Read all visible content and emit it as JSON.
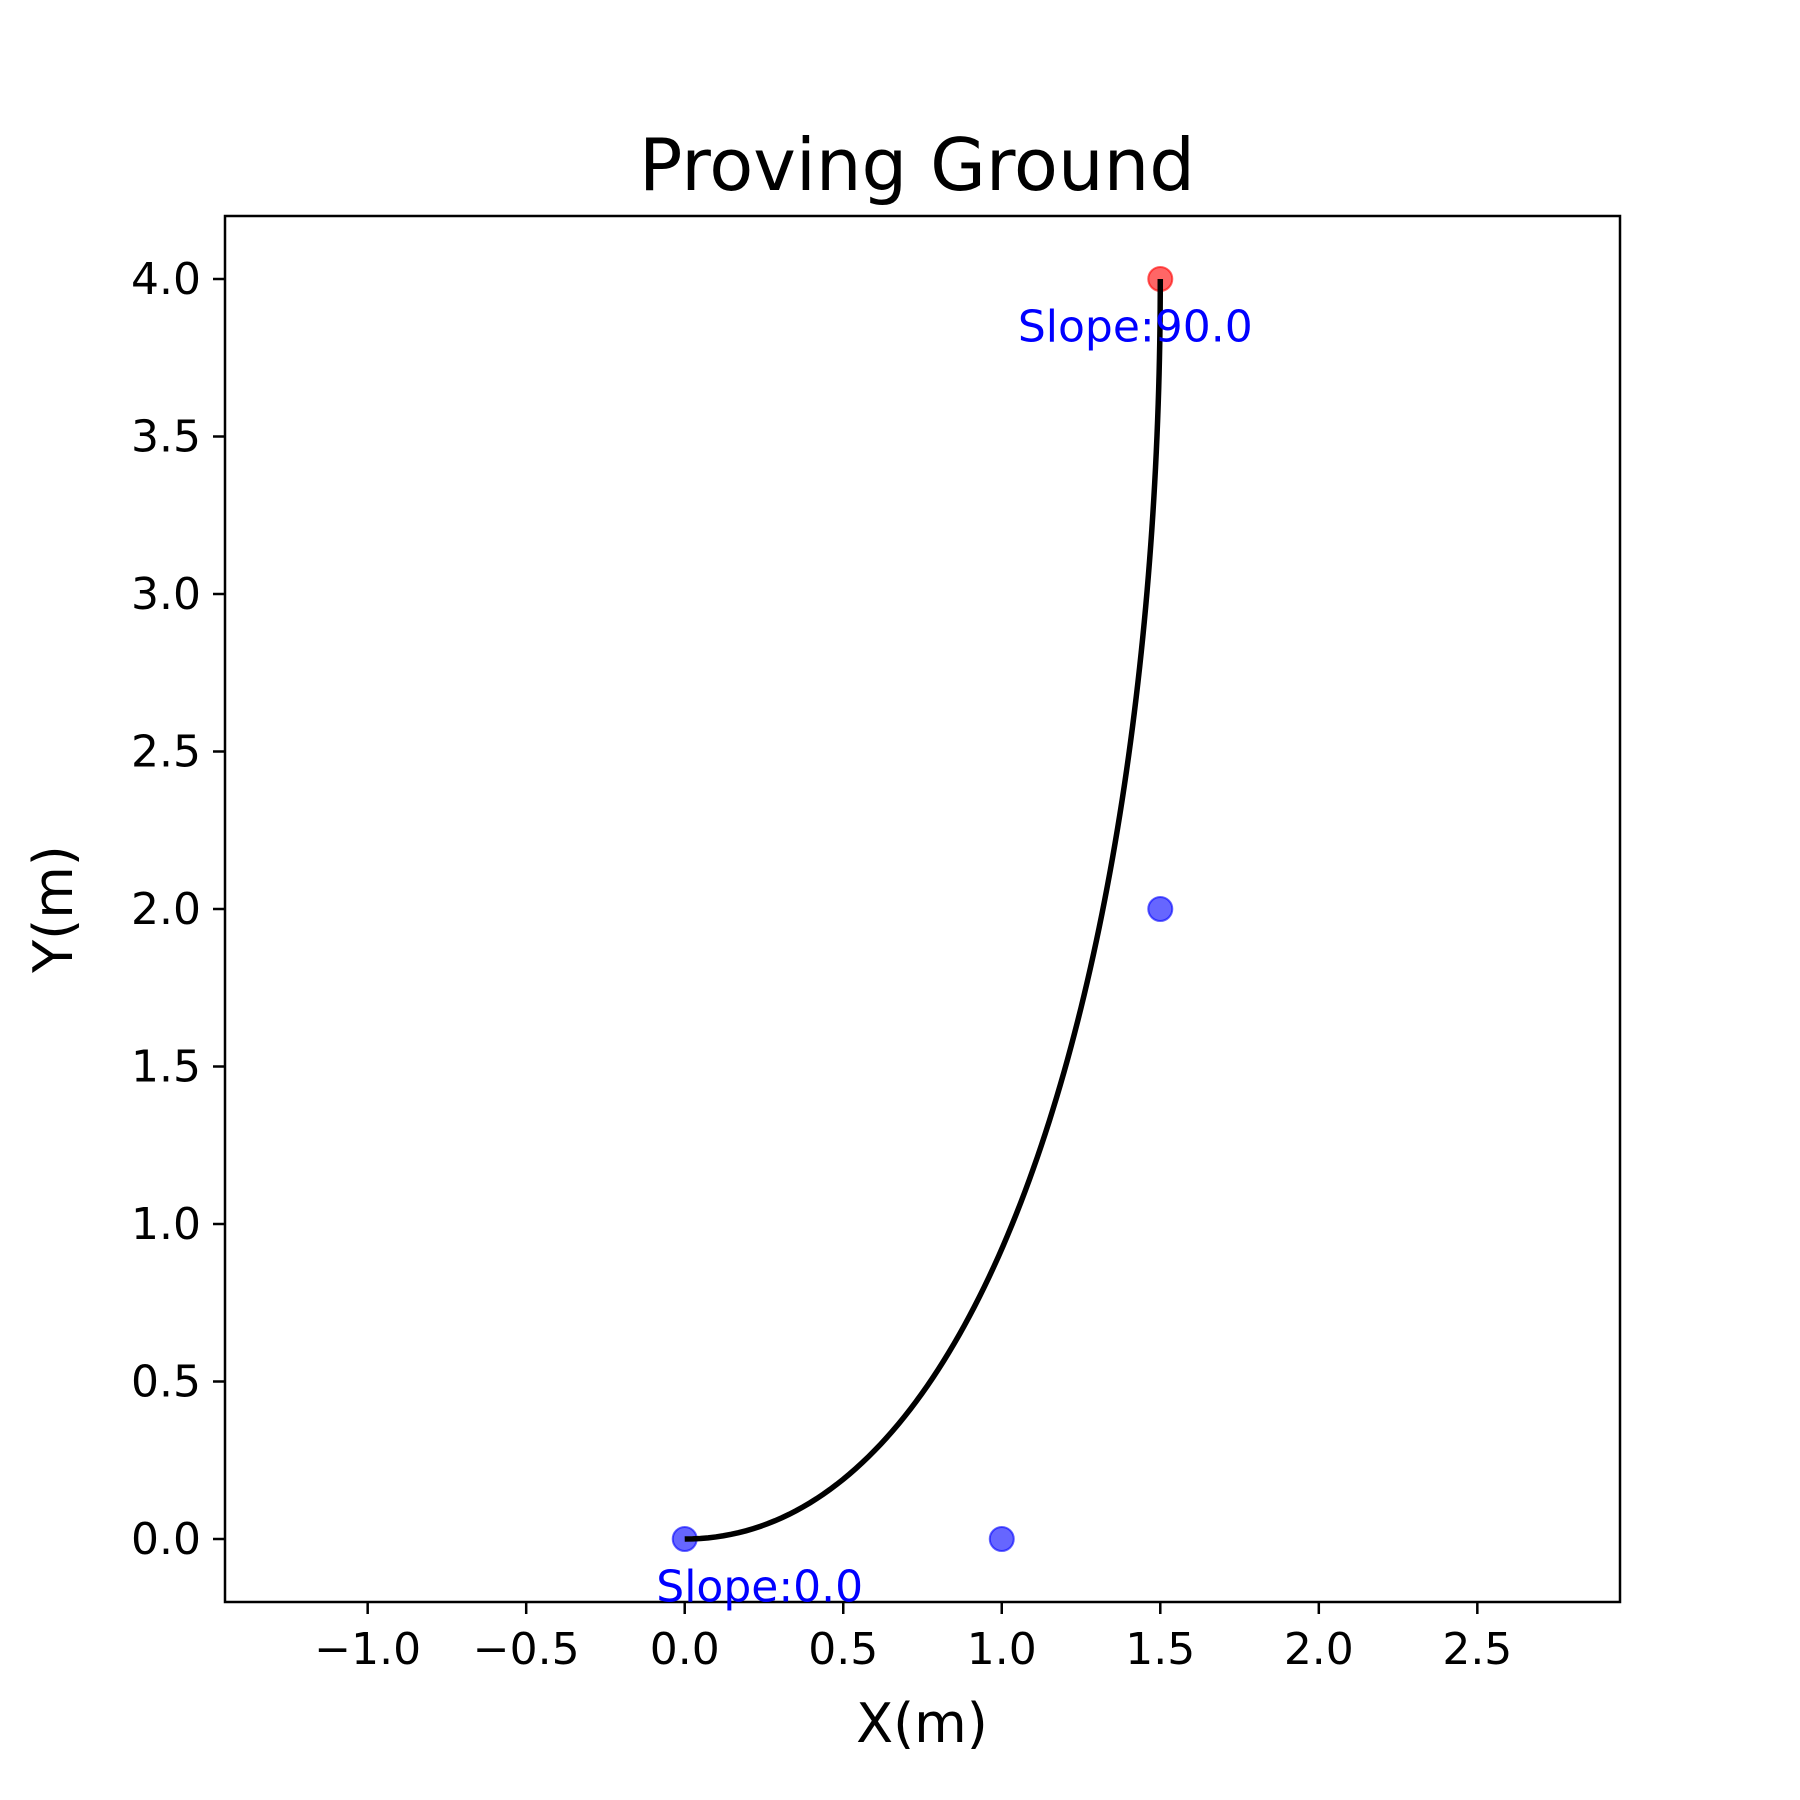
{
  "chart_data": {
    "type": "line",
    "title": "Proving Ground",
    "xlabel": "X(m)",
    "ylabel": "Y(m)",
    "xlim": [
      -1.45,
      2.95
    ],
    "ylim": [
      -0.2,
      4.2
    ],
    "xticks": [
      -1.0,
      -0.5,
      0.0,
      0.5,
      1.0,
      1.5,
      2.0,
      2.5
    ],
    "xtick_labels": [
      "−1.0",
      "−0.5",
      "0.0",
      "0.5",
      "1.0",
      "1.5",
      "2.0",
      "2.5"
    ],
    "yticks": [
      0.0,
      0.5,
      1.0,
      1.5,
      2.0,
      2.5,
      3.0,
      3.5,
      4.0
    ],
    "ytick_labels": [
      "0.0",
      "0.5",
      "1.0",
      "1.5",
      "2.0",
      "2.5",
      "3.0",
      "3.5",
      "4.0"
    ],
    "grid": false,
    "curve": {
      "name": "path",
      "color": "#000000",
      "control_points": [
        [
          0.0,
          0.0
        ],
        [
          1.0,
          0.0
        ],
        [
          1.5,
          2.0
        ],
        [
          1.5,
          4.0
        ]
      ]
    },
    "points": [
      {
        "name": "start-point",
        "x": 0.0,
        "y": 0.0,
        "color": "#0000ff"
      },
      {
        "name": "control-point-1",
        "x": 1.0,
        "y": 0.0,
        "color": "#0000ff"
      },
      {
        "name": "control-point-2",
        "x": 1.5,
        "y": 2.0,
        "color": "#0000ff"
      },
      {
        "name": "end-point",
        "x": 1.5,
        "y": 4.0,
        "color": "#ff0000"
      }
    ],
    "annotations": [
      {
        "name": "start-slope-label",
        "text": "Slope:0.0",
        "x": 0.0,
        "y": -0.15,
        "color": "#0000ff"
      },
      {
        "name": "end-slope-label",
        "text": "Slope:90.0",
        "x": 1.5,
        "y": 3.85,
        "color": "#0000ff"
      }
    ]
  }
}
